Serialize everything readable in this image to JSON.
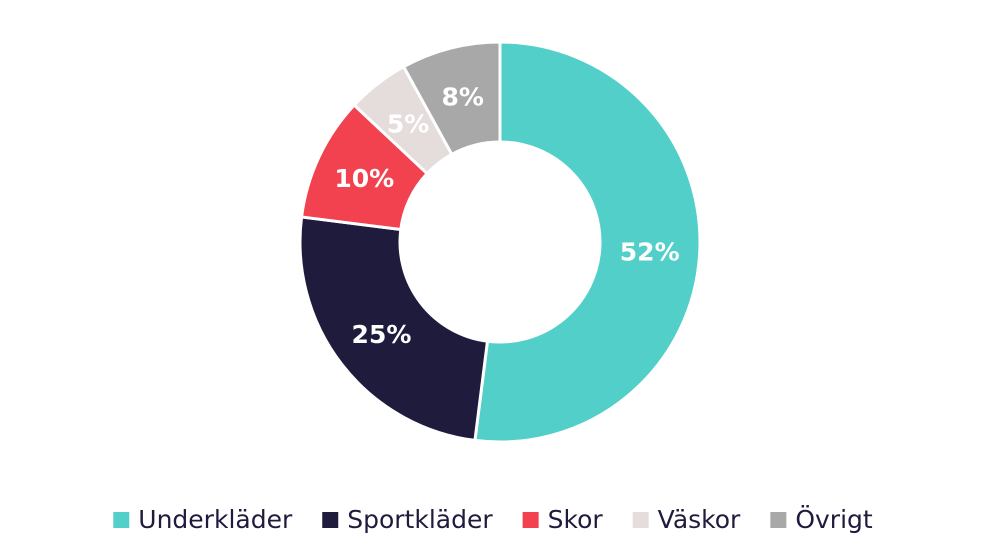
{
  "chart_data": {
    "type": "donut",
    "categories": [
      "Underkläder",
      "Sportkläder",
      "Skor",
      "Väskor",
      "Övrigt"
    ],
    "values": [
      52,
      25,
      10,
      5,
      8
    ],
    "value_labels": [
      "52%",
      "25%",
      "10%",
      "5%",
      "8%"
    ],
    "colors": [
      "#52cfc8",
      "#1f1b3d",
      "#f2414f",
      "#e5dcdc",
      "#a8a8a8"
    ],
    "legend": "bottom"
  }
}
